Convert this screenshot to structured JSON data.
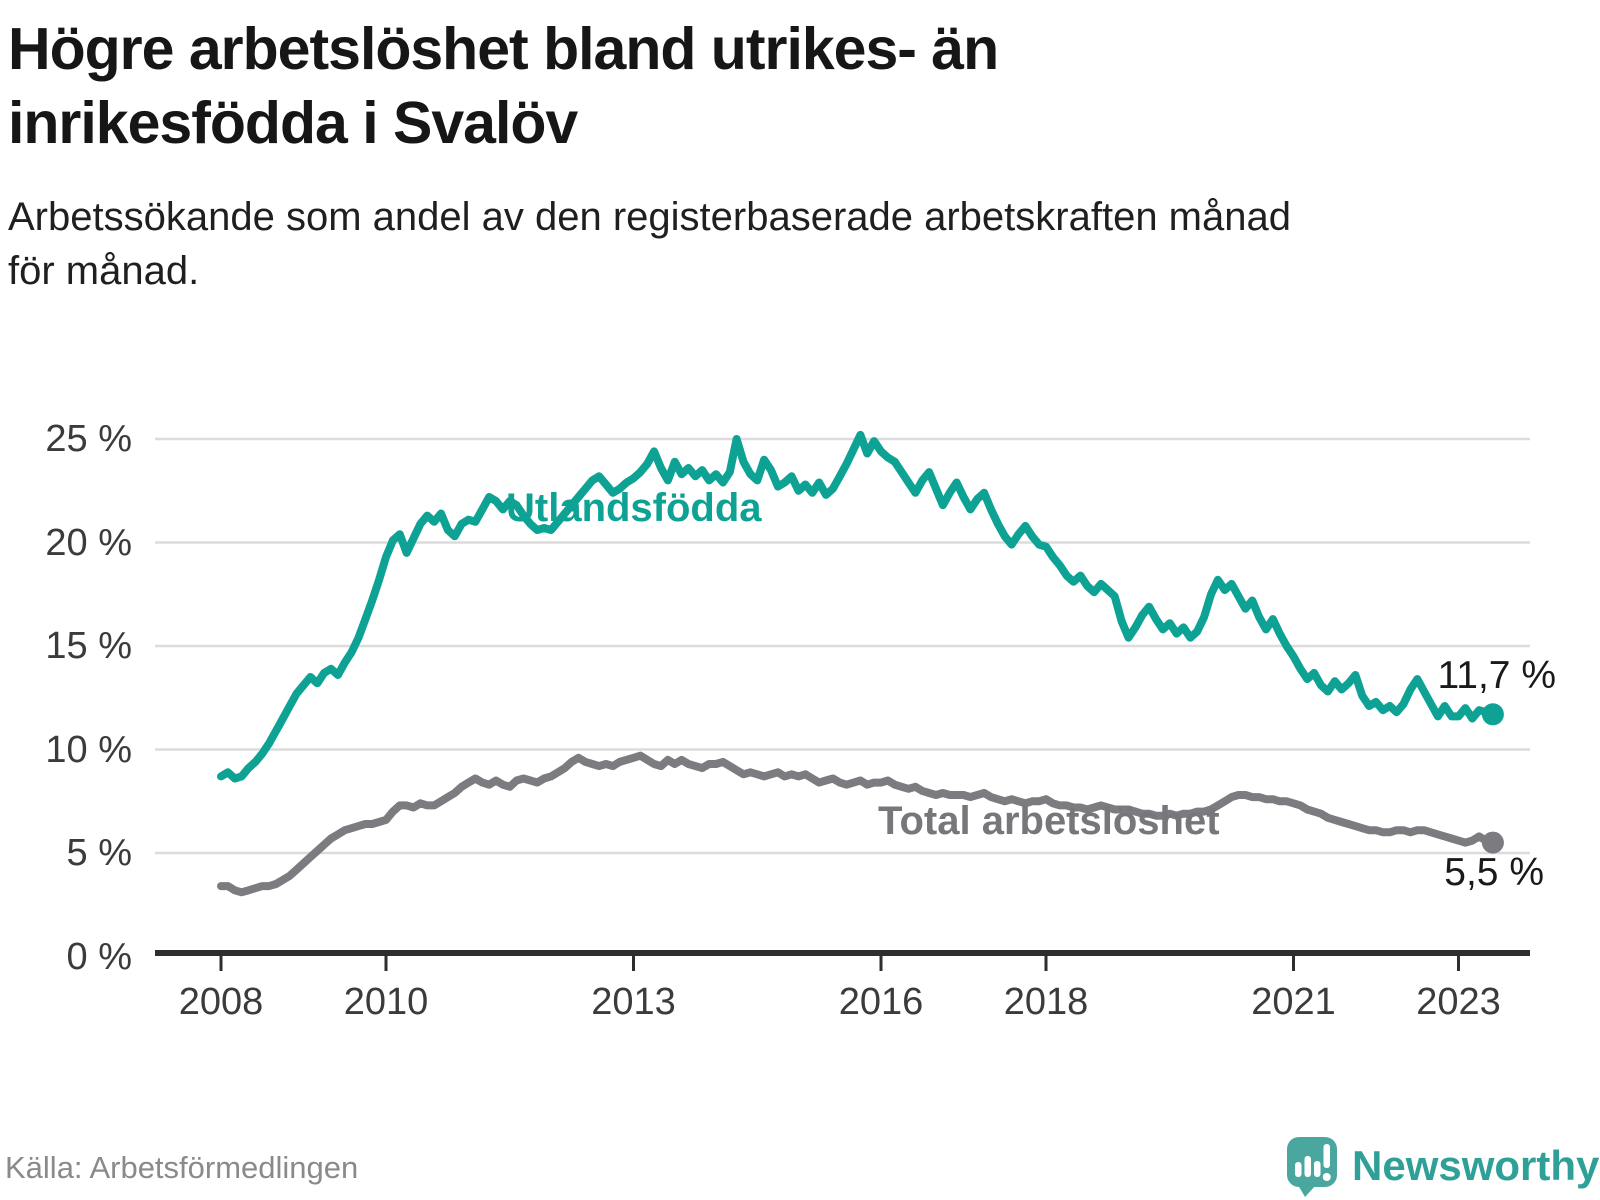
{
  "header": {
    "title_line1": "Högre arbetslöshet bland utrikes- än",
    "title_line2": "inrikesfödda i Svalöv",
    "subtitle_line1": "Arbetssökande som andel av den registerbaserade arbetskraften månad",
    "subtitle_line2": "för månad."
  },
  "footer": {
    "source": "Källa: Arbetsförmedlingen",
    "brand": "Newsworthy"
  },
  "colors": {
    "foreign_born_line": "#0ea294",
    "total_line": "#7b7b80",
    "gridline": "#dcdcdc",
    "axis": "#2e2e2e",
    "brand_teal": "#4aa7a0"
  },
  "chart_data": {
    "type": "line",
    "title": "Högre arbetslöshet bland utrikes- än inrikesfödda i Svalöv",
    "subtitle": "Arbetssökande som andel av den registerbaserade arbetskraften månad för månad.",
    "xlabel": "",
    "ylabel": "",
    "unit": "%",
    "frequency": "monthly",
    "x_start": "2008-01",
    "x_end": "2023-06",
    "ylim": [
      0,
      26.5
    ],
    "grid": "horizontal",
    "legend": "inline-labels",
    "y_ticks": [
      {
        "value": 0,
        "label": "0 %"
      },
      {
        "value": 5,
        "label": "5 %"
      },
      {
        "value": 10,
        "label": "10 %"
      },
      {
        "value": 15,
        "label": "15 %"
      },
      {
        "value": 20,
        "label": "20 %"
      },
      {
        "value": 25,
        "label": "25 %"
      }
    ],
    "x_ticks": [
      {
        "year": 2008,
        "label": "2008"
      },
      {
        "year": 2010,
        "label": "2010"
      },
      {
        "year": 2013,
        "label": "2013"
      },
      {
        "year": 2016,
        "label": "2016"
      },
      {
        "year": 2018,
        "label": "2018"
      },
      {
        "year": 2021,
        "label": "2021"
      },
      {
        "year": 2023,
        "label": "2023"
      }
    ],
    "series": [
      {
        "name": "Utlandsfödda",
        "end_label": "11,7 %",
        "end_value": 11.7,
        "color": "#0ea294",
        "values": [
          8.7,
          8.9,
          8.6,
          8.7,
          9.1,
          9.4,
          9.8,
          10.3,
          10.9,
          11.5,
          12.1,
          12.7,
          13.1,
          13.5,
          13.2,
          13.7,
          13.9,
          13.6,
          14.2,
          14.7,
          15.4,
          16.3,
          17.2,
          18.2,
          19.3,
          20.1,
          20.4,
          19.5,
          20.2,
          20.9,
          21.3,
          21.0,
          21.4,
          20.6,
          20.3,
          20.9,
          21.1,
          21.0,
          21.6,
          22.2,
          22.0,
          21.6,
          22.0,
          21.8,
          21.3,
          20.9,
          20.6,
          20.7,
          20.6,
          21.0,
          21.4,
          21.8,
          22.2,
          22.6,
          23.0,
          23.2,
          22.8,
          22.4,
          22.6,
          22.9,
          23.1,
          23.4,
          23.8,
          24.4,
          23.6,
          23.0,
          23.9,
          23.3,
          23.6,
          23.2,
          23.5,
          23.0,
          23.3,
          22.9,
          23.4,
          25.0,
          23.9,
          23.3,
          23.0,
          24.0,
          23.5,
          22.7,
          22.9,
          23.2,
          22.5,
          22.8,
          22.4,
          22.9,
          22.3,
          22.6,
          23.2,
          23.8,
          24.5,
          25.2,
          24.3,
          24.9,
          24.4,
          24.1,
          23.9,
          23.4,
          22.9,
          22.4,
          23.0,
          23.4,
          22.6,
          21.8,
          22.4,
          22.9,
          22.2,
          21.6,
          22.1,
          22.4,
          21.6,
          20.9,
          20.3,
          19.9,
          20.4,
          20.8,
          20.3,
          19.9,
          19.8,
          19.3,
          18.9,
          18.4,
          18.1,
          18.4,
          17.9,
          17.6,
          18.0,
          17.7,
          17.4,
          16.2,
          15.4,
          15.9,
          16.5,
          16.9,
          16.3,
          15.8,
          16.1,
          15.6,
          15.9,
          15.4,
          15.7,
          16.4,
          17.5,
          18.2,
          17.7,
          18.0,
          17.4,
          16.8,
          17.2,
          16.4,
          15.8,
          16.3,
          15.6,
          15.0,
          14.5,
          13.9,
          13.4,
          13.7,
          13.1,
          12.8,
          13.3,
          12.9,
          13.2,
          13.6,
          12.6,
          12.1,
          12.3,
          11.9,
          12.1,
          11.8,
          12.2,
          12.9,
          13.4,
          12.8,
          12.2,
          11.6,
          12.1,
          11.6,
          11.6,
          12.0,
          11.5,
          11.9,
          11.8,
          11.7
        ]
      },
      {
        "name": "Total arbetslöshet",
        "end_label": "5,5 %",
        "end_value": 5.5,
        "color": "#7b7b80",
        "values": [
          3.4,
          3.4,
          3.2,
          3.1,
          3.2,
          3.3,
          3.4,
          3.4,
          3.5,
          3.7,
          3.9,
          4.2,
          4.5,
          4.8,
          5.1,
          5.4,
          5.7,
          5.9,
          6.1,
          6.2,
          6.3,
          6.4,
          6.4,
          6.5,
          6.6,
          7.0,
          7.3,
          7.3,
          7.2,
          7.4,
          7.3,
          7.3,
          7.5,
          7.7,
          7.9,
          8.2,
          8.4,
          8.6,
          8.4,
          8.3,
          8.5,
          8.3,
          8.2,
          8.5,
          8.6,
          8.5,
          8.4,
          8.6,
          8.7,
          8.9,
          9.1,
          9.4,
          9.6,
          9.4,
          9.3,
          9.2,
          9.3,
          9.2,
          9.4,
          9.5,
          9.6,
          9.7,
          9.5,
          9.3,
          9.2,
          9.5,
          9.3,
          9.5,
          9.3,
          9.2,
          9.1,
          9.3,
          9.3,
          9.4,
          9.2,
          9.0,
          8.8,
          8.9,
          8.8,
          8.7,
          8.8,
          8.9,
          8.7,
          8.8,
          8.7,
          8.8,
          8.6,
          8.4,
          8.5,
          8.6,
          8.4,
          8.3,
          8.4,
          8.5,
          8.3,
          8.4,
          8.4,
          8.5,
          8.3,
          8.2,
          8.1,
          8.2,
          8.0,
          7.9,
          7.8,
          7.9,
          7.8,
          7.8,
          7.8,
          7.7,
          7.8,
          7.9,
          7.7,
          7.6,
          7.5,
          7.6,
          7.5,
          7.4,
          7.5,
          7.5,
          7.6,
          7.4,
          7.3,
          7.3,
          7.2,
          7.2,
          7.1,
          7.2,
          7.3,
          7.2,
          7.1,
          7.1,
          7.1,
          7.0,
          6.9,
          6.9,
          6.8,
          6.8,
          6.9,
          6.8,
          6.9,
          6.9,
          7.0,
          7.0,
          7.1,
          7.3,
          7.5,
          7.7,
          7.8,
          7.8,
          7.7,
          7.7,
          7.6,
          7.6,
          7.5,
          7.5,
          7.4,
          7.3,
          7.1,
          7.0,
          6.9,
          6.7,
          6.6,
          6.5,
          6.4,
          6.3,
          6.2,
          6.1,
          6.1,
          6.0,
          6.0,
          6.1,
          6.1,
          6.0,
          6.1,
          6.1,
          6.0,
          5.9,
          5.8,
          5.7,
          5.6,
          5.5,
          5.6,
          5.8,
          5.6,
          5.5
        ]
      }
    ]
  }
}
